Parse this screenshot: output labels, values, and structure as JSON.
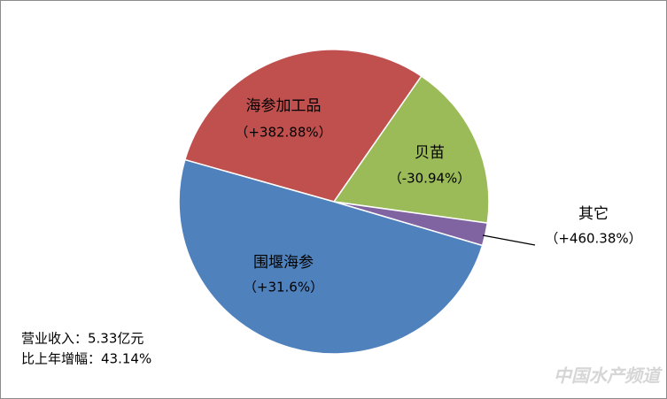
{
  "chart_data": {
    "type": "pie",
    "categories": [
      "海参加工品",
      "贝苗",
      "其它",
      "围堰海参"
    ],
    "growth": [
      "（+382.88%）",
      "（-30.94%）",
      "（+460.38%）",
      "（+31.6%）"
    ],
    "values": [
      30.1,
      17.7,
      2.4,
      49.8
    ],
    "colors": [
      "#c0504d",
      "#9bbb59",
      "#8064a2",
      "#4f81bd"
    ],
    "annotations": [
      "营业收入：5.33亿元",
      "比上年增幅：43.14%"
    ],
    "watermark": "中国水产频道"
  }
}
